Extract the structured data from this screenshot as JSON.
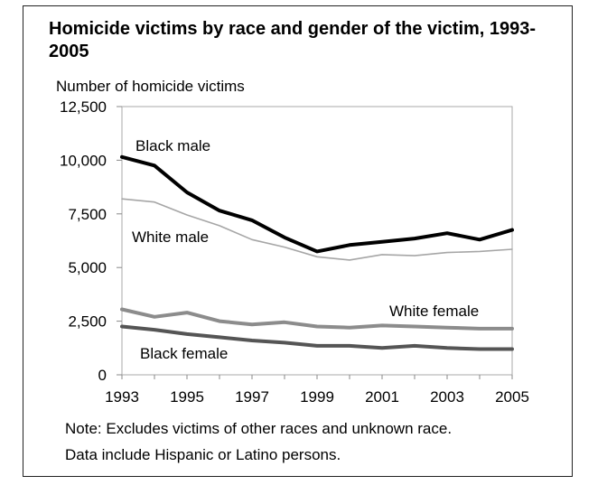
{
  "chart_data": {
    "type": "line",
    "title": "Homicide victims by race and gender of the victim, 1993-2005",
    "ylabel": "Number of homicide victims",
    "xlabel": "",
    "x": [
      1993,
      1994,
      1995,
      1996,
      1997,
      1998,
      1999,
      2000,
      2001,
      2002,
      2003,
      2004,
      2005
    ],
    "xticks": [
      "1993",
      "1995",
      "1997",
      "1999",
      "2001",
      "2003",
      "2005"
    ],
    "yticks": [
      "0",
      "2,500",
      "5,000",
      "7,500",
      "10,000",
      "12,500"
    ],
    "ylim": [
      0,
      12500
    ],
    "grid": false,
    "series": [
      {
        "name": "Black male",
        "color": "#000000",
        "values": [
          10150,
          9750,
          8500,
          7650,
          7200,
          6400,
          5750,
          6050,
          6200,
          6350,
          6600,
          6300,
          6750
        ]
      },
      {
        "name": "White male",
        "color": "#a6a6a6",
        "values": [
          8200,
          8050,
          7450,
          6950,
          6300,
          5950,
          5500,
          5350,
          5600,
          5550,
          5700,
          5750,
          5850
        ]
      },
      {
        "name": "White female",
        "color": "#8c8c8c",
        "values": [
          3050,
          2700,
          2900,
          2500,
          2350,
          2450,
          2250,
          2200,
          2300,
          2250,
          2200,
          2150,
          2150
        ]
      },
      {
        "name": "Black female",
        "color": "#555555",
        "values": [
          2250,
          2100,
          1900,
          1750,
          1600,
          1500,
          1350,
          1350,
          1250,
          1350,
          1250,
          1200,
          1200
        ]
      }
    ]
  },
  "note_line1": "Note: Excludes victims of other races and unknown race.",
  "note_line2": "Data include Hispanic or Latino persons."
}
